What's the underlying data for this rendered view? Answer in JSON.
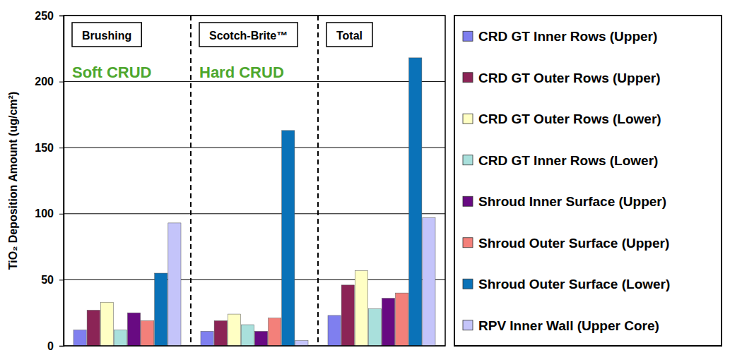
{
  "chart_data": {
    "type": "bar",
    "y_label": "TiO₂ Deposition Amount (ug/cm²)",
    "categories": [
      "Brushing",
      "Scotch-Brite™",
      "Total"
    ],
    "annotations": [
      {
        "text": "Soft CRUD",
        "category": "Brushing"
      },
      {
        "text": "Hard CRUD",
        "category": "Scotch-Brite™"
      }
    ],
    "series": [
      {
        "name": "CRD GT Inner Rows (Upper)",
        "color": "#7f7fef",
        "values": [
          12,
          11,
          23
        ]
      },
      {
        "name": "CRD GT Outer Rows (Upper)",
        "color": "#8b2456",
        "values": [
          27,
          19,
          46
        ]
      },
      {
        "name": "CRD GT Outer Rows (Lower)",
        "color": "#ffffc4",
        "values": [
          33,
          24,
          57
        ]
      },
      {
        "name": "CRD GT Inner Rows (Lower)",
        "color": "#a9e0dc",
        "values": [
          12,
          16,
          28
        ]
      },
      {
        "name": "Shroud Inner Surface (Upper)",
        "color": "#680a82",
        "values": [
          25,
          11,
          36
        ]
      },
      {
        "name": "Shroud Outer Surface (Upper)",
        "color": "#f3807a",
        "values": [
          19,
          21,
          40
        ]
      },
      {
        "name": "Shroud Outer Surface (Lower)",
        "color": "#0a72b8",
        "values": [
          55,
          163,
          218
        ]
      },
      {
        "name": "RPV Inner Wall (Upper Core)",
        "color": "#c4c4fa",
        "values": [
          93,
          4,
          97
        ]
      }
    ],
    "ylim": [
      0,
      250
    ],
    "yticks": [
      0,
      50,
      100,
      150,
      200,
      250
    ],
    "grid": true,
    "legend": "right"
  }
}
